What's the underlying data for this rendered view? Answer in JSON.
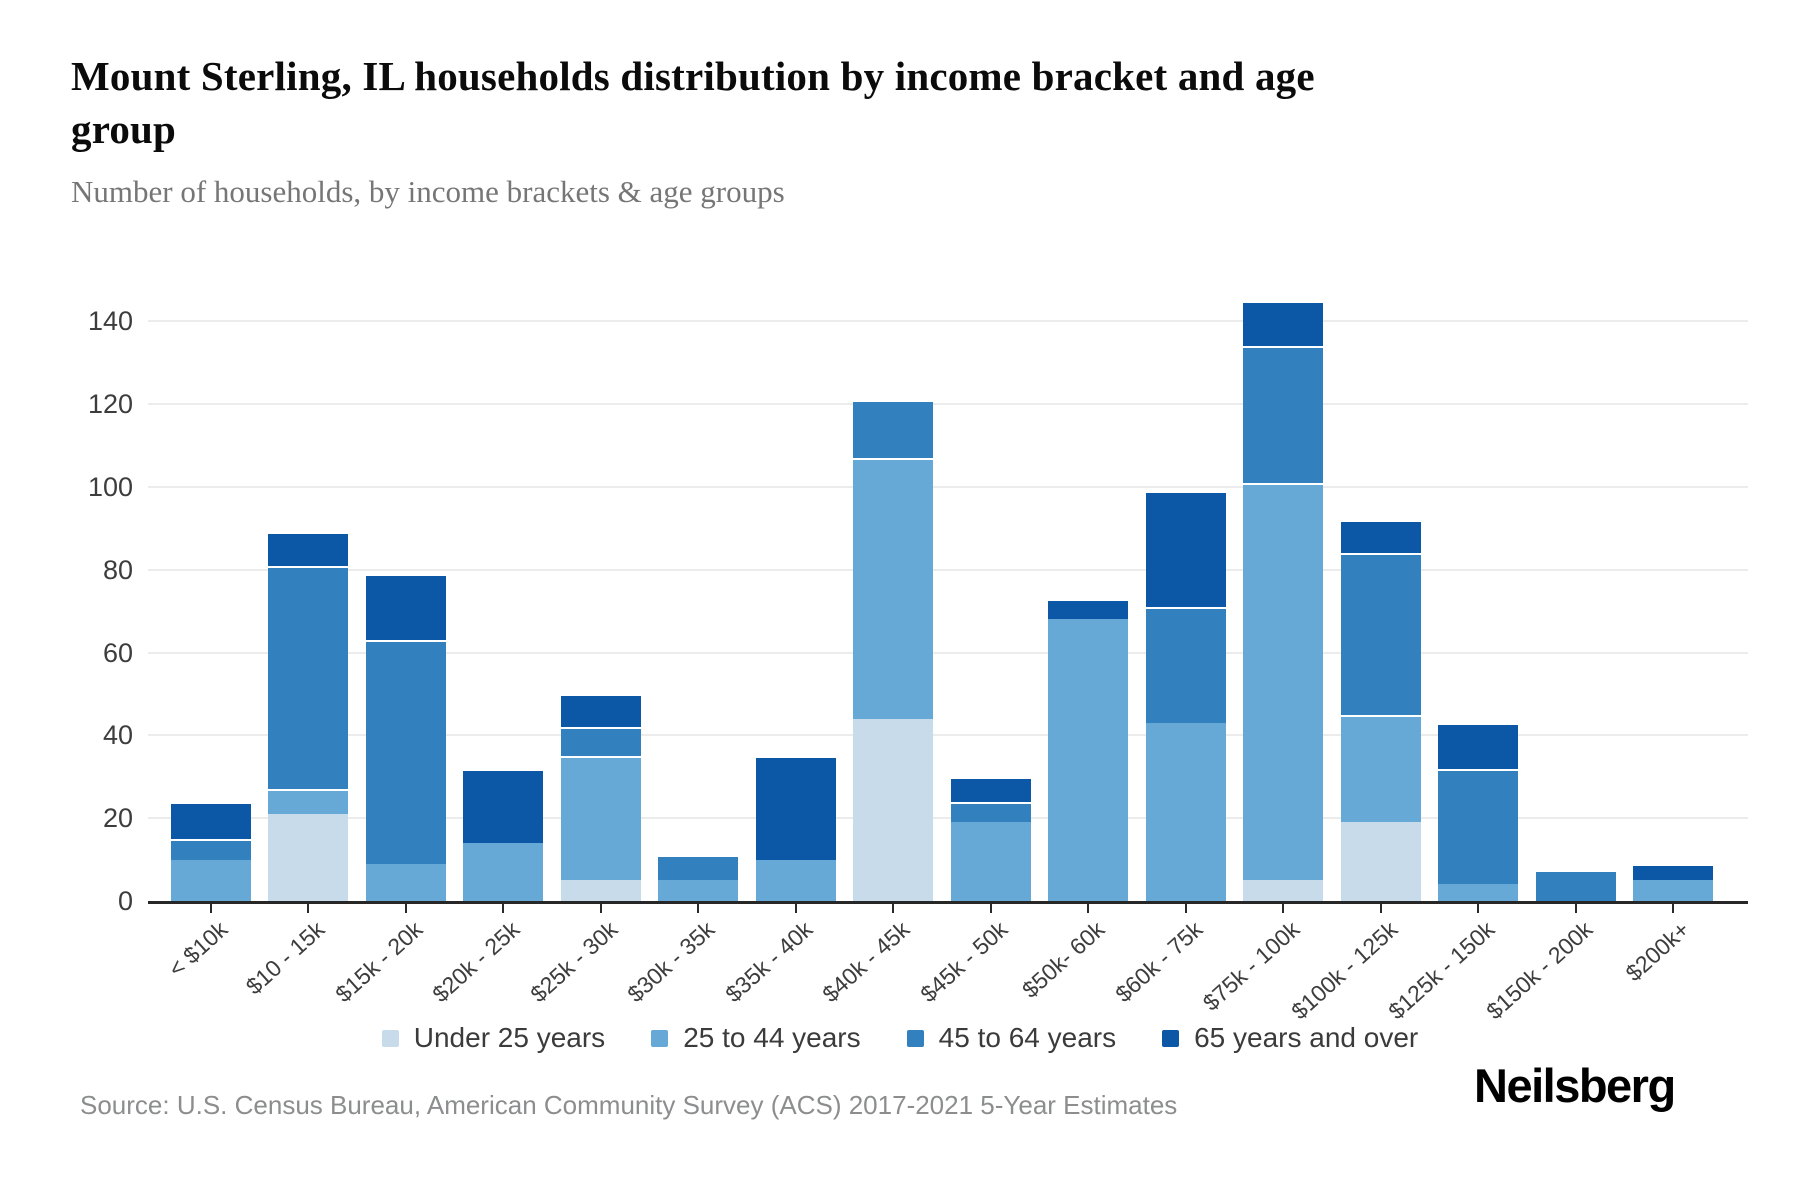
{
  "title": "Mount Sterling, IL households distribution by income bracket and age group",
  "subtitle": "Number of households, by income brackets & age groups",
  "source_note": "Source: U.S. Census Bureau, American Community Survey (ACS) 2017-2021 5-Year Estimates",
  "brand": "Neilsberg",
  "colors": {
    "under_25": "#c7dbea",
    "age_25_44": "#66a9d7",
    "age_45_64": "#3380bf",
    "age_65_over": "#0d57a7",
    "gridline": "#ececec",
    "axis": "#272727",
    "tick_text": "#3d3d3d",
    "subtitle_text": "#767676",
    "source_text": "#8c8d8e"
  },
  "chart_data": {
    "type": "bar",
    "stacked": true,
    "title": "Mount Sterling, IL households distribution by income bracket and age group",
    "subtitle": "Number of households, by income brackets & age groups",
    "xlabel": "",
    "ylabel": "",
    "ylim": [
      0,
      156
    ],
    "yticks": [
      0,
      20,
      40,
      60,
      80,
      100,
      120,
      140
    ],
    "grid": true,
    "legend_position": "bottom",
    "categories": [
      "< $10k",
      "$10 - 15k",
      "$15k - 20k",
      "$20k - 25k",
      "$25k - 30k",
      "$30k - 35k",
      "$35k - 40k",
      "$40k - 45k",
      "$45k - 50k",
      "$50k- 60k",
      "$60k - 75k",
      "$75k - 100k",
      "$100k - 125k",
      "$125k - 150k",
      "$150k - 200k",
      "$200k+"
    ],
    "series": [
      {
        "name": "Under 25 years",
        "color": "#c7dbea",
        "values": [
          0,
          21,
          0,
          0,
          5,
          0,
          0,
          44,
          0,
          0,
          0,
          5,
          19,
          0,
          0,
          0
        ]
      },
      {
        "name": "25 to 44 years",
        "color": "#66a9d7",
        "values": [
          10,
          6,
          9,
          14,
          30,
          5,
          10,
          63,
          19,
          68,
          43,
          96,
          26,
          4,
          0,
          5
        ]
      },
      {
        "name": "45 to 64 years",
        "color": "#3380bf",
        "values": [
          5,
          54,
          54,
          0,
          7,
          6,
          0,
          14,
          5,
          0,
          28,
          33,
          39,
          28,
          7,
          0
        ]
      },
      {
        "name": "65 years and over",
        "color": "#0d57a7",
        "values": [
          9,
          8,
          16,
          18,
          8,
          0,
          25,
          0,
          6,
          5,
          28,
          11,
          8,
          11,
          0,
          4
        ]
      }
    ],
    "bar_totals": [
      24,
      89,
      79,
      32,
      50,
      11,
      35,
      121,
      30,
      73,
      99,
      145,
      92,
      43,
      7,
      9
    ]
  }
}
